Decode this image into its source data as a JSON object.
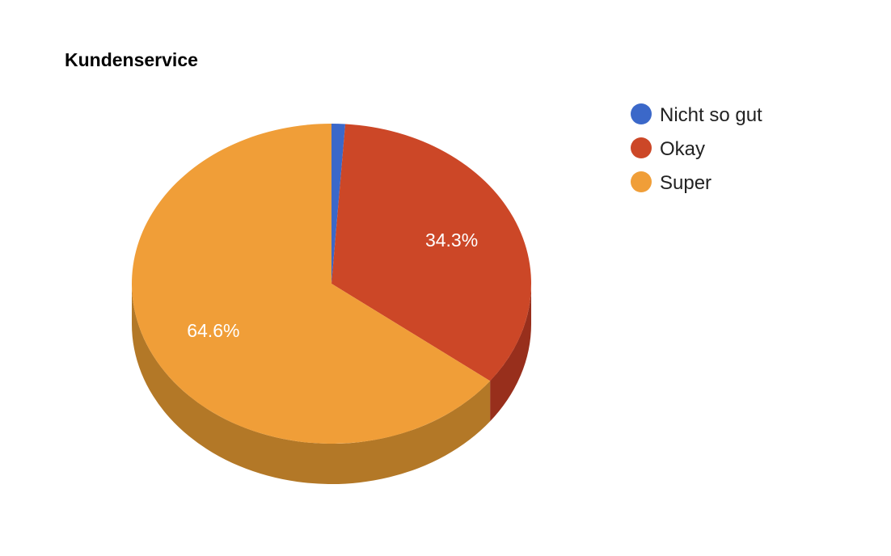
{
  "chart_data": {
    "type": "pie",
    "title": "Kundenservice",
    "three_d": true,
    "legend_position": "right",
    "categories": [
      "Nicht so gut",
      "Okay",
      "Super"
    ],
    "values": [
      1.1,
      34.3,
      64.6
    ],
    "value_labels": [
      "",
      "34.3%",
      "64.6%"
    ],
    "colors": [
      "#3b68c9",
      "#cc4727",
      "#f09e38"
    ],
    "side_colors": [
      "#2c4e97",
      "#982f1c",
      "#b37827"
    ]
  }
}
